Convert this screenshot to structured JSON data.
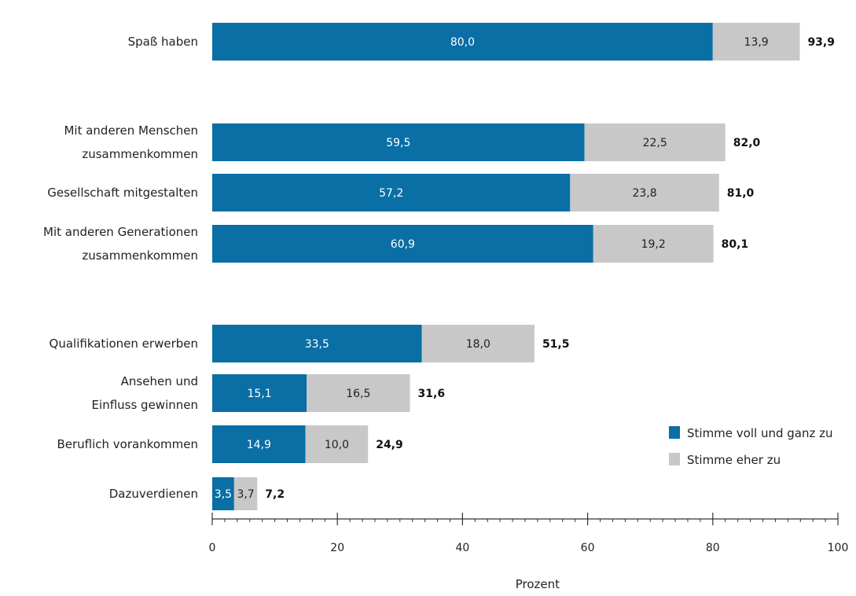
{
  "chart_data": {
    "type": "bar",
    "orientation": "horizontal",
    "stacked": true,
    "categories": [
      [
        "Spaß haben"
      ],
      [
        "Mit anderen Menschen",
        "zusammenkommen"
      ],
      [
        "Gesellschaft mitgestalten"
      ],
      [
        "Mit anderen Generationen",
        "zusammenkommen"
      ],
      [
        "Qualifikationen erwerben"
      ],
      [
        "Ansehen und",
        "Einfluss gewinnen"
      ],
      [
        "Beruflich vorankommen"
      ],
      [
        "Dazuverdienen"
      ]
    ],
    "series": [
      {
        "name": "Stimme voll und ganz zu",
        "color": "#0a6fa5",
        "values": [
          80.0,
          59.5,
          57.2,
          60.9,
          33.5,
          15.1,
          14.9,
          3.5
        ],
        "labels": [
          "80,0",
          "59,5",
          "57,2",
          "60,9",
          "33,5",
          "15,1",
          "14,9",
          "3,5"
        ]
      },
      {
        "name": "Stimme eher zu",
        "color": "#c8c8c8",
        "values": [
          13.9,
          22.5,
          23.8,
          19.2,
          18.0,
          16.5,
          10.0,
          3.7
        ],
        "labels": [
          "13,9",
          "22,5",
          "23,8",
          "19,2",
          "18,0",
          "16,5",
          "10,0",
          "3,7"
        ]
      }
    ],
    "totals": [
      93.9,
      82.0,
      81.0,
      80.1,
      51.5,
      31.6,
      24.9,
      7.2
    ],
    "total_labels": [
      "93,9",
      "82,0",
      "81,0",
      "80,1",
      "51,5",
      "31,6",
      "24,9",
      "7,2"
    ],
    "xlabel": "Prozent",
    "ylabel": "",
    "xlim": [
      0,
      100
    ],
    "xticks": [
      0,
      20,
      40,
      60,
      80,
      100
    ],
    "grid": false,
    "legend_position": "bottom-right"
  }
}
